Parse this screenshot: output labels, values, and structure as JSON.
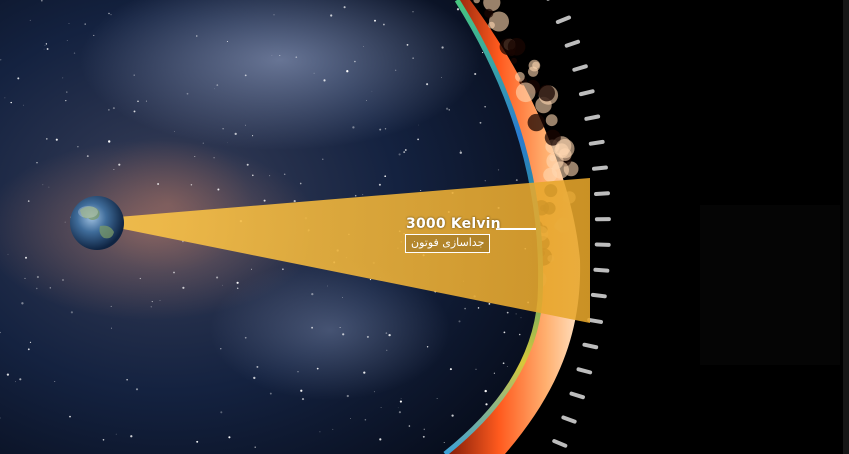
{
  "labels": {
    "temperature": "3000 Kelvin",
    "photon_decoupling": "جداسازی فوتون"
  },
  "colors": {
    "cone": "#f2b233",
    "plasma_outer": "#ff5a1e",
    "plasma_inner": "#ffb070",
    "cmb_ring": "#2a9a7a",
    "earth": "#3f6c9a",
    "background": "#0b1426"
  },
  "icons": {
    "observer": "earth-icon"
  }
}
